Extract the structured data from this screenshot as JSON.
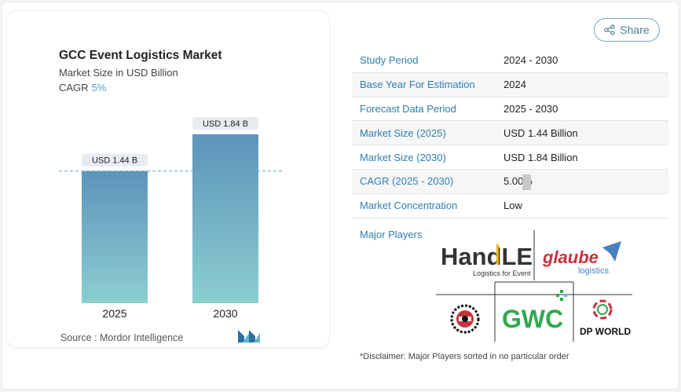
{
  "card": {
    "title": "GCC Event Logistics Market",
    "subtitle": "Market Size in USD Billion",
    "cagr_label": "CAGR",
    "cagr_value": "5%",
    "source": "Source :  Mordor Intelligence"
  },
  "chart_data": {
    "type": "bar",
    "categories": [
      "2025",
      "2030"
    ],
    "values": [
      1.44,
      1.84
    ],
    "data_labels": [
      "USD 1.44 B",
      "USD 1.84 B"
    ],
    "title": "GCC Event Logistics Market",
    "ylabel": "Market Size in USD Billion",
    "ylim": [
      0,
      1.84
    ],
    "bar_color_top": "#5d94bb",
    "bar_color_bottom": "#8bcfd0",
    "reference_line": "dashed at 2025 value"
  },
  "share": {
    "label": "Share",
    "icon": "share-icon"
  },
  "details": [
    {
      "key": "Study Period",
      "value": "2024 - 2030"
    },
    {
      "key": "Base Year For Estimation",
      "value": "2024"
    },
    {
      "key": "Forecast Data Period",
      "value": "2025 - 2030"
    },
    {
      "key": "Market Size (2025)",
      "value": "USD 1.44 Billion"
    },
    {
      "key": "Market Size (2030)",
      "value": "USD 1.84 Billion"
    },
    {
      "key": "CAGR (2025 - 2030)",
      "value": "5.00%"
    },
    {
      "key": "Market Concentration",
      "value": "Low"
    }
  ],
  "players": {
    "label": "Major Players",
    "handle_main": "HandLE",
    "handle_sub": "Logistics for Event",
    "glaube_main": "glaube",
    "glaube_sub": "logistics",
    "gwc": "GWC",
    "dpworld": "DP WORLD"
  },
  "disclaimer": "*Disclaimer: Major Players sorted in no particular order",
  "colors": {
    "accent": "#2f7fb0",
    "brand_teal": "#4fa3c7"
  }
}
